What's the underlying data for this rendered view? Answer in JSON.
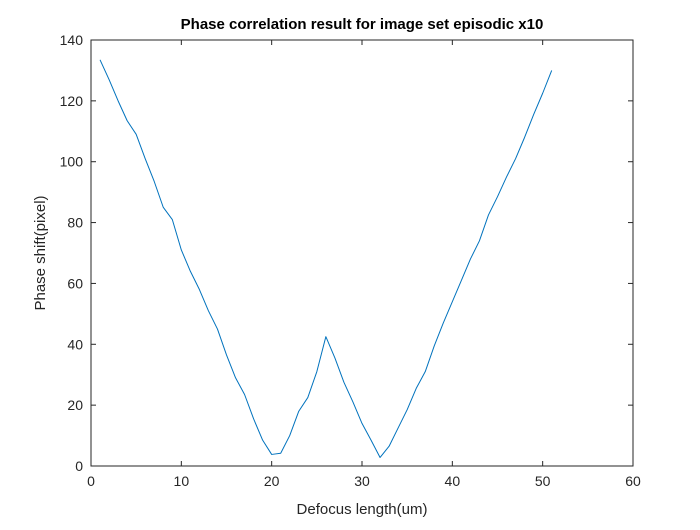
{
  "chart_data": {
    "type": "line",
    "title": "Phase correlation result for image set episodic x10",
    "xlabel": "Defocus length(um)",
    "ylabel": "Phase shift(pixel)",
    "xlim": [
      0,
      60
    ],
    "ylim": [
      0,
      140
    ],
    "x_ticks": [
      "0",
      "10",
      "20",
      "30",
      "40",
      "50",
      "60"
    ],
    "y_ticks": [
      "0",
      "20",
      "40",
      "60",
      "80",
      "100",
      "120",
      "140"
    ],
    "grid": false,
    "legend": "none",
    "series_color": "#0072BD",
    "series": [
      {
        "x": [
          1,
          2,
          3,
          4,
          5,
          6,
          7,
          8,
          9,
          10,
          11,
          12,
          13,
          14,
          15,
          16,
          17,
          18,
          19,
          20,
          21,
          22,
          23,
          24,
          25,
          26,
          27,
          28,
          29,
          30,
          31,
          32,
          33,
          34,
          35,
          36,
          37,
          38,
          39,
          40,
          41,
          42,
          43,
          44,
          45,
          46,
          47,
          48,
          49,
          50,
          51
        ],
        "y": [
          133.5,
          127,
          120,
          113.5,
          109,
          101,
          93.5,
          85,
          81,
          71,
          64,
          58,
          51,
          45,
          36.5,
          29,
          23.5,
          15.5,
          8.5,
          3.8,
          4.2,
          10,
          18,
          22.5,
          31,
          42.5,
          35.5,
          27.5,
          21,
          14,
          8.5,
          2.8,
          6.5,
          12.5,
          18.5,
          25.5,
          31,
          39.5,
          47,
          54,
          61,
          68,
          74,
          82.5,
          88.5,
          95,
          101,
          108,
          115.5,
          122.5,
          130
        ]
      }
    ]
  }
}
